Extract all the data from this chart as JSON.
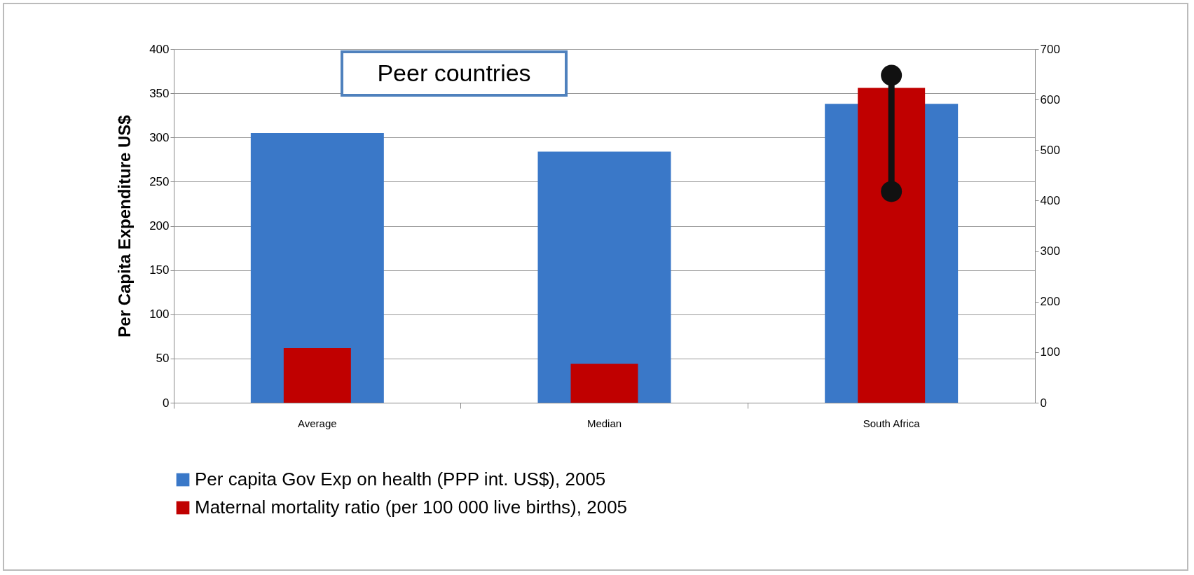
{
  "chart_data": {
    "type": "bar",
    "ylabel": "Per Capita  Expenditure  US$",
    "categories": [
      "Average",
      "Median",
      "South Africa"
    ],
    "series": [
      {
        "name": "Per capita Gov Exp on health (PPP int. US$), 2005",
        "color": "#3a78c8",
        "values": [
          305,
          284,
          338
        ]
      },
      {
        "name": "Maternal mortality ratio (per 100 000 live births), 2005",
        "color": "#c00000",
        "axis": "y2",
        "values": [
          108,
          77,
          623
        ]
      },
      {
        "type": "line",
        "color": "#111111",
        "axis": "y2",
        "x": [
          "South Africa",
          "South Africa"
        ],
        "values": [
          418,
          648
        ]
      }
    ],
    "ylim": [
      0,
      400
    ],
    "yticks": [
      0,
      50,
      100,
      150,
      200,
      250,
      300,
      350,
      400
    ],
    "y2lim": [
      0,
      700
    ],
    "y2ticks": [
      0,
      100,
      200,
      300,
      400,
      500,
      600,
      700
    ],
    "grid": "y",
    "legend": "bottom",
    "marker": "circle",
    "annotations": [
      "Peer countries"
    ]
  }
}
